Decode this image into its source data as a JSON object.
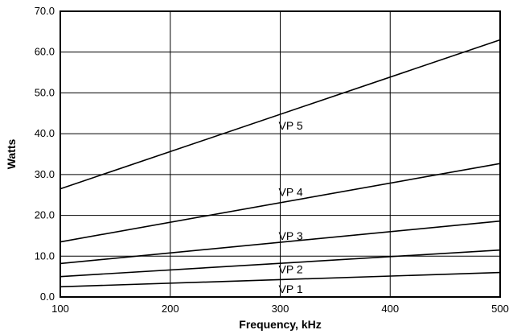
{
  "chart_data": {
    "type": "line",
    "title": "",
    "xlabel": "Frequency, kHz",
    "ylabel": "Watts",
    "xlim": [
      100,
      500
    ],
    "ylim": [
      0,
      70
    ],
    "x_ticks": [
      100,
      200,
      300,
      400,
      500
    ],
    "y_ticks": [
      "0.0",
      "10.0",
      "20.0",
      "30.0",
      "40.0",
      "50.0",
      "60.0",
      "70.0"
    ],
    "grid": true,
    "legend": "none",
    "x": [
      100,
      500
    ],
    "series": [
      {
        "name": "VP 1",
        "values": [
          2.5,
          6.0
        ],
        "label_at": [
          300,
          2.0
        ]
      },
      {
        "name": "VP 2",
        "values": [
          5.0,
          11.5
        ],
        "label_at": [
          300,
          6.8
        ]
      },
      {
        "name": "VP 3",
        "values": [
          8.2,
          18.6
        ],
        "label_at": [
          300,
          15.0
        ]
      },
      {
        "name": "VP 4",
        "values": [
          13.5,
          32.7
        ],
        "label_at": [
          300,
          25.7
        ]
      },
      {
        "name": "VP 5",
        "values": [
          26.5,
          63.0
        ],
        "label_at": [
          300,
          42.0
        ]
      }
    ]
  }
}
